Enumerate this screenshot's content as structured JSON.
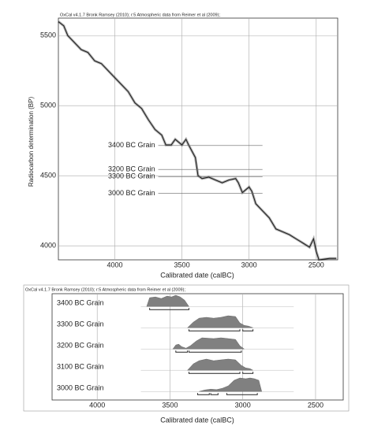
{
  "chart_data": [
    {
      "type": "line",
      "title": "OxCal v4.1.7 Bronk Ramsey (2010); r:5 Atmospheric data from Reimer et al (2009);",
      "x_label": "Calibrated date (calBC)",
      "y_label": "Radiocarbon determination (BP)",
      "xlim": [
        4420,
        2340
      ],
      "ylim": [
        3900,
        5625
      ],
      "xticks": [
        4000,
        3500,
        3000,
        2500
      ],
      "yticks": [
        4000,
        4500,
        5000,
        5500
      ],
      "grid": true,
      "series": [
        {
          "color": "#222222",
          "x": [
            4420,
            4380,
            4350,
            4300,
            4250,
            4200,
            4150,
            4100,
            4050,
            4000,
            3950,
            3900,
            3850,
            3800,
            3750,
            3700,
            3650,
            3620,
            3580,
            3550,
            3500,
            3470,
            3450,
            3400,
            3380,
            3350,
            3300,
            3250,
            3200,
            3150,
            3100,
            3080,
            3050,
            3000,
            2980,
            2950,
            2900,
            2850,
            2800,
            2750,
            2700,
            2650,
            2600,
            2550,
            2520,
            2500,
            2480,
            2400,
            2350
          ],
          "values": [
            5600,
            5570,
            5500,
            5450,
            5400,
            5380,
            5320,
            5300,
            5250,
            5200,
            5150,
            5100,
            5020,
            4980,
            4900,
            4830,
            4790,
            4720,
            4720,
            4760,
            4720,
            4760,
            4720,
            4630,
            4500,
            4480,
            4490,
            4470,
            4450,
            4470,
            4480,
            4450,
            4380,
            4420,
            4390,
            4300,
            4250,
            4200,
            4120,
            4100,
            4080,
            4050,
            4020,
            3990,
            4050,
            3960,
            3900,
            3910,
            3910
          ]
        }
      ],
      "samples": [
        {
          "name": "3400 BC Grain",
          "value": 4716
        },
        {
          "name": "3200 BC Grain",
          "value": 4545
        },
        {
          "name": "3300 BC Grain",
          "value": 4494
        },
        {
          "name": "3000 BC Grain",
          "value": 4375
        }
      ]
    },
    {
      "type": "distribution",
      "title": "OxCal v4.1.7 Bronk Ramsey (2010); r:5 Atmospheric data from Reimer et al (2009);",
      "x_label": "Calibrated date (calBC)",
      "xlim": [
        4310,
        2310
      ],
      "xticks": [
        4000,
        3500,
        3000,
        2500
      ],
      "grid": true,
      "color": "#808080",
      "samples": [
        {
          "name": "3400 BC Grain",
          "x": [
            3660,
            3640,
            3600,
            3560,
            3520,
            3490,
            3460,
            3430,
            3400,
            3370
          ],
          "values": [
            0,
            0.55,
            0.6,
            0.5,
            0.65,
            0.6,
            0.7,
            0.6,
            0.4,
            0
          ],
          "ranges": [
            [
              3640,
              3370
            ]
          ]
        },
        {
          "name": "3300 BC Grain",
          "x": [
            3380,
            3340,
            3300,
            3250,
            3200,
            3150,
            3100,
            3050,
            3020,
            2990,
            2960,
            2930
          ],
          "values": [
            0,
            0.35,
            0.6,
            0.65,
            0.6,
            0.65,
            0.75,
            0.7,
            0.3,
            0.15,
            0.1,
            0
          ],
          "ranges": [
            [
              3370,
              3020
            ],
            [
              3000,
              2930
            ]
          ]
        },
        {
          "name": "3200 BC Grain",
          "x": [
            3480,
            3460,
            3440,
            3420,
            3390,
            3360,
            3320,
            3280,
            3200,
            3150,
            3100,
            3050,
            3020,
            2990
          ],
          "values": [
            0,
            0.25,
            0.3,
            0.15,
            0.05,
            0.2,
            0.5,
            0.7,
            0.65,
            0.7,
            0.65,
            0.6,
            0.2,
            0
          ],
          "ranges": [
            [
              3460,
              3380
            ],
            [
              3370,
              3010
            ]
          ]
        },
        {
          "name": "3100 BC Grain",
          "x": [
            3380,
            3340,
            3300,
            3250,
            3200,
            3150,
            3100,
            3050,
            3010,
            2980,
            2950,
            2930
          ],
          "values": [
            0,
            0.4,
            0.6,
            0.7,
            0.6,
            0.65,
            0.7,
            0.65,
            0.3,
            0.15,
            0.1,
            0
          ],
          "ranges": [
            [
              3370,
              3020
            ],
            [
              3000,
              2930
            ]
          ]
        },
        {
          "name": "3000 BC Grain",
          "x": [
            3300,
            3260,
            3220,
            3180,
            3140,
            3100,
            3060,
            3020,
            2980,
            2950,
            2920,
            2890,
            2870
          ],
          "values": [
            0,
            0.1,
            0.15,
            0.12,
            0.2,
            0.35,
            0.7,
            0.85,
            0.8,
            0.85,
            0.8,
            0.7,
            0
          ],
          "ranges": [
            [
              3310,
              3230
            ],
            [
              3220,
              3170
            ],
            [
              3110,
              2900
            ]
          ]
        }
      ]
    }
  ]
}
